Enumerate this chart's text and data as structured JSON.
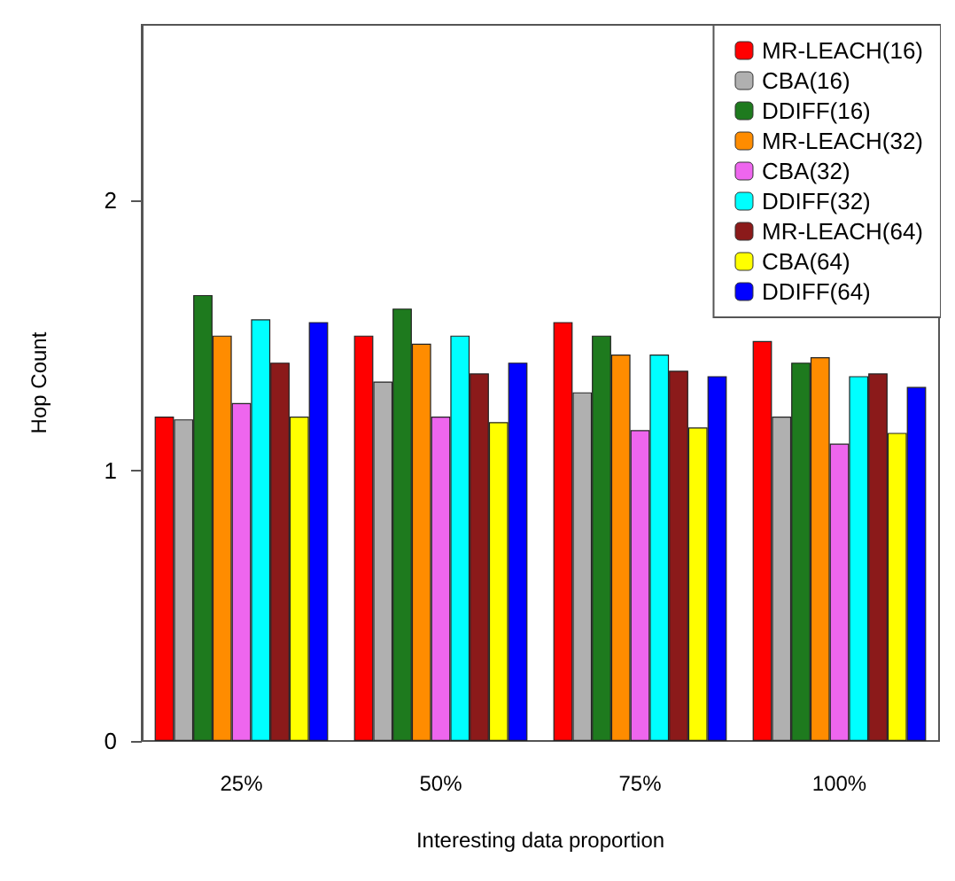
{
  "chart_data": {
    "type": "bar",
    "xlabel": "Interesting data proportion",
    "ylabel": "Hop Count",
    "categories": [
      "25%",
      "50%",
      "75%",
      "100%"
    ],
    "series": [
      {
        "name": "MR-LEACH(16)",
        "color": "#ff0000",
        "values": [
          1.2,
          1.5,
          1.55,
          1.48
        ]
      },
      {
        "name": "CBA(16)",
        "color": "#b0b0b0",
        "values": [
          1.19,
          1.33,
          1.29,
          1.2
        ]
      },
      {
        "name": "DDIFF(16)",
        "color": "#1e7a1e",
        "values": [
          1.65,
          1.6,
          1.5,
          1.4
        ]
      },
      {
        "name": "MR-LEACH(32)",
        "color": "#ff8c00",
        "values": [
          1.5,
          1.47,
          1.43,
          1.42
        ]
      },
      {
        "name": "CBA(32)",
        "color": "#ee66ee",
        "values": [
          1.25,
          1.2,
          1.15,
          1.1
        ]
      },
      {
        "name": "DDIFF(32)",
        "color": "#00ffff",
        "values": [
          1.56,
          1.5,
          1.43,
          1.35
        ]
      },
      {
        "name": "MR-LEACH(64)",
        "color": "#8b1a1a",
        "values": [
          1.4,
          1.36,
          1.37,
          1.36
        ]
      },
      {
        "name": "CBA(64)",
        "color": "#ffff00",
        "values": [
          1.2,
          1.18,
          1.16,
          1.14
        ]
      },
      {
        "name": "DDIFF(64)",
        "color": "#0000ff",
        "values": [
          1.55,
          1.4,
          1.35,
          1.31
        ]
      }
    ],
    "ylim": [
      0,
      2.65
    ],
    "yticks": [
      0,
      1,
      2
    ],
    "grid": false,
    "legend": "top right"
  }
}
